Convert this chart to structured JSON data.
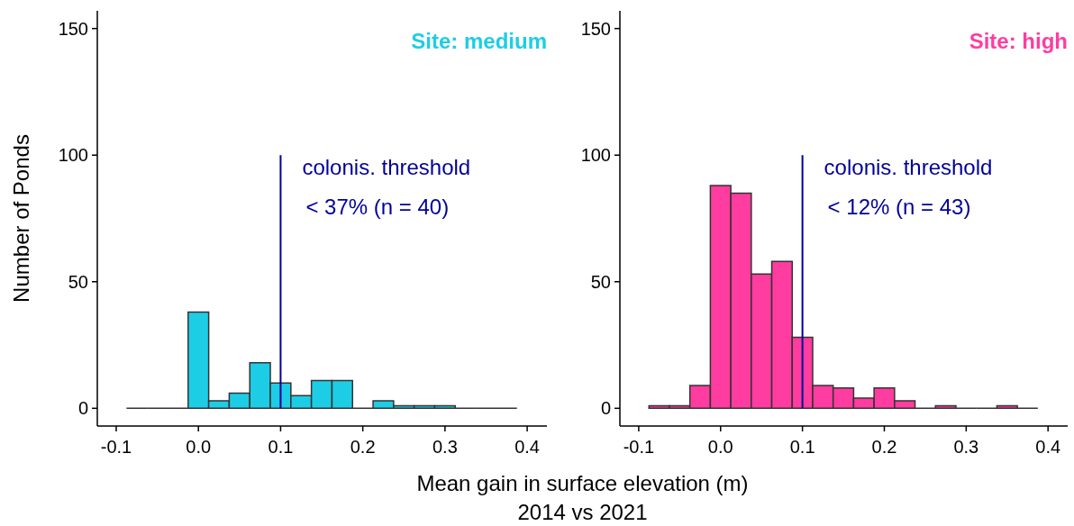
{
  "chart_data": [
    {
      "type": "histogram",
      "title": "Site: medium",
      "ylabel": "Number of Ponds",
      "xlabel": "Mean gain in surface elevation (m)\n2014 vs 2021",
      "bins": [
        -0.0875,
        -0.0625,
        -0.0375,
        -0.0125,
        0.0125,
        0.0375,
        0.0625,
        0.0875,
        0.1125,
        0.1375,
        0.1625,
        0.1875,
        0.2125,
        0.2375,
        0.2625,
        0.2875,
        0.3125,
        0.3375,
        0.3625,
        0.3875
      ],
      "values": [
        0,
        0,
        0,
        38,
        3,
        6,
        18,
        10,
        5,
        11,
        11,
        0,
        3,
        1,
        1,
        1,
        0,
        0,
        0
      ],
      "color": "#1dcde6",
      "colors": [
        "#333333",
        "#333333",
        "#333333",
        "#1dcde6",
        "#1dcde6",
        "#1dcde6",
        "#1dcde6",
        "#1dcde6",
        "#1dcde6",
        "#1dcde6",
        "#1dcde6",
        "#333333",
        "#1dcde6",
        "#1dcde6",
        "#1dcde6",
        "#1dcde6",
        "#333333",
        "#333333",
        "#333333"
      ],
      "xlim": [
        -0.123,
        0.424
      ],
      "xticks": [
        -0.1,
        {
          "value": 0,
          "label": "0.0"
        },
        0.1,
        0.2,
        0.3,
        0.4
      ],
      "ylim": [
        -7,
        157
      ],
      "yticks": [
        0,
        50,
        100,
        150
      ],
      "ref_lines": [
        {
          "axis": "x",
          "value": 0.1,
          "label": "colonis. threshold",
          "color": "#000099"
        }
      ],
      "annotations": [
        "< 37% (n = 40)"
      ]
    },
    {
      "type": "histogram",
      "title": "Site: high",
      "bins": [
        -0.0875,
        -0.0625,
        -0.0375,
        -0.0125,
        0.0125,
        0.0375,
        0.0625,
        0.0875,
        0.1125,
        0.1375,
        0.1625,
        0.1875,
        0.2125,
        0.2375,
        0.2625,
        0.2875,
        0.3125,
        0.3375,
        0.3625,
        0.3875
      ],
      "values": [
        1,
        1,
        9,
        88,
        85,
        53,
        58,
        28,
        9,
        8,
        4,
        8,
        3,
        0,
        1,
        0,
        0,
        1,
        0
      ],
      "color": "#ff3c9f",
      "colors": [
        "#ff3c9f",
        "#ff3c9f",
        "#ff3c9f",
        "#ff3c9f",
        "#ff3c9f",
        "#ff3c9f",
        "#ff3c9f",
        "#ff3c9f",
        "#ff3c9f",
        "#ff3c9f",
        "#ff3c9f",
        "#ff3c9f",
        "#ff3c9f",
        "#333333",
        "#ff3c9f",
        "#333333",
        "#333333",
        "#ff3c9f",
        "#333333"
      ],
      "xlim": [
        -0.123,
        0.424
      ],
      "xticks": [
        -0.1,
        {
          "value": 0,
          "label": "0.0"
        },
        0.1,
        0.2,
        0.3,
        0.4
      ],
      "ylim": [
        -7,
        157
      ],
      "yticks": [
        0,
        50,
        100,
        150
      ],
      "ref_lines": [
        {
          "axis": "x",
          "value": 0.1,
          "label": "colonis. threshold",
          "color": "#000099"
        }
      ],
      "annotations": [
        "< 12% (n = 43)"
      ]
    }
  ]
}
